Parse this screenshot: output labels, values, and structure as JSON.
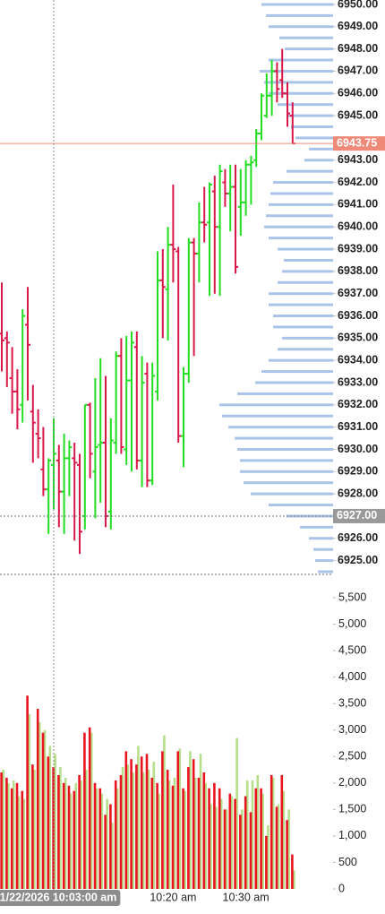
{
  "chart_data": [
    {
      "type": "ohlc",
      "categories": [
        null,
        null,
        null,
        null,
        null,
        null,
        null,
        null,
        null,
        null,
        "1/22/2026 10:03:00 am",
        null,
        null,
        null,
        null,
        null,
        null,
        null,
        null,
        null,
        null,
        null,
        null,
        null,
        null,
        null,
        null,
        null,
        null,
        null,
        null,
        null,
        null,
        "10:20 am",
        null,
        null,
        null,
        null,
        null,
        null,
        null,
        null,
        null,
        null,
        null,
        null,
        null,
        "10:30 am",
        null,
        null,
        null,
        null,
        null,
        null,
        null,
        null,
        null
      ],
      "open": [
        6935.2,
        6935.0,
        6933.2,
        6932.6,
        6932.0,
        6935.6,
        6931.7,
        6930.7,
        6929.1,
        6928.2,
        6929.3,
        6929.5,
        6928.1,
        6929.6,
        6929.6,
        6929.3,
        6927.0,
        6932.0,
        6929.0,
        6930.2,
        6930.3,
        6927.2,
        6930.3,
        6934.2,
        6930.0,
        6933.1,
        6934.6,
        6929.5,
        6933.4,
        6928.6,
        6932.6,
        6937.6,
        6937.2,
        6939.2,
        6938.9,
        6930.6,
        6933.4,
        6939.3,
        6938.8,
        6940.2,
        6940.2,
        6941.6,
        6940.0,
        6942.0,
        6941.5,
        6941.8,
        6940.9,
        6941.1,
        6942.8,
        6943.0,
        6944.2,
        6945.0,
        6945.9,
        6947.0,
        6946.6,
        6946.0,
        6945.0
      ],
      "high": [
        6937.5,
        6935.3,
        6934.6,
        6933.6,
        6936.3,
        6937.3,
        6932.9,
        6931.8,
        6931.0,
        6929.6,
        6931.4,
        6930.2,
        6930.7,
        6930.4,
        6930.3,
        6929.8,
        6932.0,
        6932.1,
        6933.2,
        6934.1,
        6933.3,
        6931.4,
        6934.4,
        6935.0,
        6935.1,
        6935.3,
        6935.3,
        6934.2,
        6933.9,
        6933.9,
        6938.9,
        6939.0,
        6940.0,
        6941.9,
        6939.1,
        6933.7,
        6939.5,
        6939.5,
        6941.1,
        6941.8,
        6942.0,
        6942.3,
        6942.8,
        6942.6,
        6942.8,
        6942.8,
        6942.6,
        6943.0,
        6943.2,
        6944.4,
        6946.0,
        6946.9,
        6947.5,
        6947.4,
        6948.0,
        6946.5,
        6945.6
      ],
      "low": [
        6933.5,
        6932.8,
        6931.6,
        6930.9,
        6931.2,
        6932.2,
        6929.4,
        6929.6,
        6927.9,
        6926.2,
        6927.3,
        6926.5,
        6926.2,
        6927.9,
        6925.9,
        6925.3,
        6926.4,
        6928.7,
        6926.9,
        6927.6,
        6926.5,
        6926.4,
        6929.8,
        6929.8,
        6929.3,
        6929.0,
        6929.1,
        6928.3,
        6928.3,
        6928.4,
        6932.2,
        6935.0,
        6934.9,
        6937.5,
        6930.3,
        6929.2,
        6933.0,
        6934.2,
        6937.5,
        6939.3,
        6936.9,
        6937.0,
        6936.9,
        6940.9,
        6939.8,
        6937.9,
        6939.6,
        6940.5,
        6941.0,
        6942.7,
        6943.9,
        6944.9,
        6945.0,
        6945.6,
        6945.8,
        6944.5,
        6943.75
      ],
      "close": [
        6934.9,
        6934.8,
        6932.6,
        6931.8,
        6936.0,
        6934.7,
        6931.2,
        6930.5,
        6928.2,
        6929.5,
        6929.8,
        6928.1,
        6929.6,
        6930.1,
        6929.4,
        6926.3,
        6932.0,
        6929.8,
        6930.1,
        6930.3,
        6927.0,
        6930.4,
        6934.2,
        6930.1,
        6933.1,
        6934.8,
        6929.5,
        6933.0,
        6928.6,
        6933.3,
        6937.6,
        6937.3,
        6939.2,
        6939.0,
        6930.6,
        6933.4,
        6939.3,
        6938.8,
        6940.2,
        6940.1,
        6941.9,
        6940.0,
        6942.5,
        6941.5,
        6941.8,
        6938.2,
        6941.1,
        6942.8,
        6942.9,
        6944.2,
        6945.9,
        6945.9,
        6947.0,
        6946.2,
        6946.0,
        6945.1,
        6943.75
      ],
      "up_color": "#22dd22",
      "down_color": "#d9184a",
      "ylim": [
        6924.42,
        6950.2
      ],
      "yticks": [
        {
          "value": 6925,
          "label": "6925.00"
        },
        {
          "value": 6926,
          "label": "6926.00"
        },
        {
          "value": 6927,
          "label": "6927.00"
        },
        {
          "value": 6928,
          "label": "6928.00"
        },
        {
          "value": 6929,
          "label": "6929.00"
        },
        {
          "value": 6930,
          "label": "6930.00"
        },
        {
          "value": 6931,
          "label": "6931.00"
        },
        {
          "value": 6932,
          "label": "6932.00"
        },
        {
          "value": 6933,
          "label": "6933.00"
        },
        {
          "value": 6934,
          "label": "6934.00"
        },
        {
          "value": 6935,
          "label": "6935.00"
        },
        {
          "value": 6936,
          "label": "6936.00"
        },
        {
          "value": 6937,
          "label": "6937.00"
        },
        {
          "value": 6938,
          "label": "6938.00"
        },
        {
          "value": 6939,
          "label": "6939.00"
        },
        {
          "value": 6940,
          "label": "6940.00"
        },
        {
          "value": 6941,
          "label": "6941.00"
        },
        {
          "value": 6942,
          "label": "6942.00"
        },
        {
          "value": 6943,
          "label": "6943.00"
        },
        {
          "value": 6945,
          "label": "6945.00"
        },
        {
          "value": 6946,
          "label": "6946.00"
        },
        {
          "value": 6947,
          "label": "6947.00"
        },
        {
          "value": 6948,
          "label": "6948.00"
        },
        {
          "value": 6949,
          "label": "6949.00"
        },
        {
          "value": 6950,
          "label": "6950.00"
        }
      ],
      "last_price": {
        "value": 6943.75,
        "label": "6943.75",
        "color": "#f08a78"
      },
      "crosshair_price": {
        "value": 6927,
        "label": "6927.00",
        "color": "#999999"
      },
      "volume_profile": {
        "color": "#a9c4e8",
        "prices": [
          6924.5,
          6925,
          6925.5,
          6926,
          6926.5,
          6927,
          6927.5,
          6928,
          6928.5,
          6929,
          6929.5,
          6930,
          6930.5,
          6931,
          6931.5,
          6932,
          6932.5,
          6933,
          6933.5,
          6934,
          6934.5,
          6935,
          6935.5,
          6936,
          6936.5,
          6937,
          6937.5,
          6938,
          6938.5,
          6939,
          6939.5,
          6940,
          6940.5,
          6941,
          6941.5,
          6942,
          6942.5,
          6943,
          6943.5,
          6944,
          6944.5,
          6945,
          6945.5,
          6946,
          6946.5,
          6947,
          6947.5,
          6948,
          6948.5,
          6949,
          6949.5,
          6950
        ],
        "values": [
          170,
          200,
          220,
          270,
          370,
          520,
          720,
          920,
          1000,
          1040,
          1040,
          1070,
          1100,
          1170,
          1240,
          1270,
          1070,
          870,
          800,
          720,
          620,
          570,
          670,
          670,
          720,
          720,
          620,
          570,
          550,
          620,
          720,
          770,
          750,
          720,
          700,
          670,
          520,
          320,
          270,
          420,
          470,
          520,
          620,
          720,
          770,
          820,
          720,
          540,
          600,
          720,
          750,
          800
        ]
      }
    },
    {
      "type": "bar",
      "ylim": [
        0,
        5500
      ],
      "yticks": [
        0,
        500,
        {
          "value": 1000,
          "label": "1,000"
        },
        {
          "value": 1500,
          "label": "1,500"
        },
        {
          "value": 2000,
          "label": "2,000"
        },
        {
          "value": 2500,
          "label": "2,500"
        },
        {
          "value": 3000,
          "label": "3,000"
        },
        {
          "value": 3500,
          "label": "3,500"
        },
        {
          "value": 4000,
          "label": "4,000"
        },
        {
          "value": 4500,
          "label": "4,500"
        },
        {
          "value": 5000,
          "label": "5,000"
        },
        {
          "value": 5500,
          "label": "5,500"
        }
      ],
      "series": [
        {
          "color": "#e8141e",
          "values": [
            2200,
            2100,
            1900,
            2000,
            1850,
            3650,
            2350,
            3400,
            2950,
            2500,
            2300,
            2150,
            2000,
            1950,
            1850,
            2150,
            2950,
            3050,
            2000,
            1900,
            1400,
            1600,
            2050,
            2150,
            2600,
            2450,
            2350,
            2500,
            2550,
            2100,
            2000,
            2600,
            2250,
            1950,
            2600,
            1900,
            2300,
            2450,
            2100,
            2200,
            1900,
            2000,
            1900,
            1500,
            1800,
            1700,
            1400,
            1750,
            1450,
            1900,
            1900,
            1000,
            2150,
            1550,
            2150,
            1300,
            650
          ]
        },
        {
          "color": "#b5df8a",
          "values": [
            2250,
            2000,
            2050,
            1750,
            1700,
            3300,
            2250,
            3150,
            3000,
            2700,
            2550,
            2300,
            2100,
            1800,
            2000,
            2050,
            2250,
            2950,
            1900,
            1800,
            1700,
            1250,
            1900,
            2300,
            2350,
            2200,
            2700,
            2200,
            2250,
            2400,
            1800,
            2900,
            2050,
            2100,
            2650,
            1850,
            2600,
            2100,
            2550,
            2000,
            1600,
            1550,
            1700,
            1500,
            1750,
            2850,
            1500,
            2050,
            2050,
            2150,
            1800,
            1200,
            2100,
            1600,
            1850,
            1500,
            350
          ]
        }
      ]
    }
  ]
}
